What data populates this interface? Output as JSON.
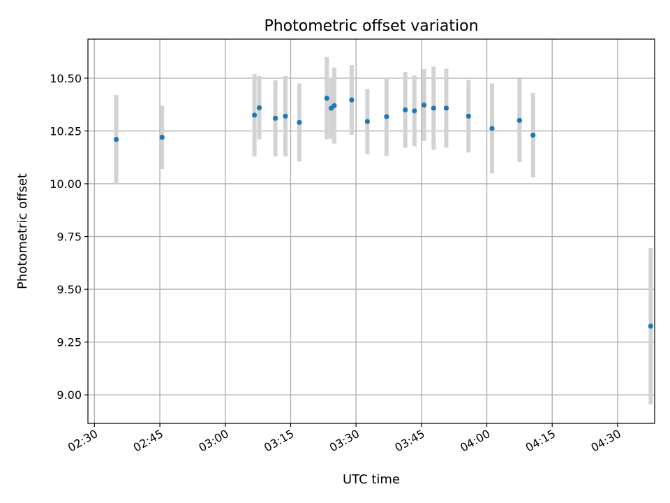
{
  "chart_data": {
    "type": "scatter",
    "title": "Photometric offset variation",
    "xlabel": "UTC time",
    "ylabel": "Photometric offset",
    "grid": true,
    "xlim_minutes": [
      148.5,
      278.5
    ],
    "ylim": [
      8.865,
      10.685
    ],
    "x_ticks": [
      {
        "label": "02:30",
        "minutes": 150
      },
      {
        "label": "02:45",
        "minutes": 165
      },
      {
        "label": "03:00",
        "minutes": 180
      },
      {
        "label": "03:15",
        "minutes": 195
      },
      {
        "label": "03:30",
        "minutes": 210
      },
      {
        "label": "03:45",
        "minutes": 225
      },
      {
        "label": "04:00",
        "minutes": 240
      },
      {
        "label": "04:15",
        "minutes": 255
      },
      {
        "label": "04:30",
        "minutes": 270
      }
    ],
    "y_ticks": [
      {
        "label": "9.00",
        "value": 9.0
      },
      {
        "label": "9.25",
        "value": 9.25
      },
      {
        "label": "9.50",
        "value": 9.5
      },
      {
        "label": "9.75",
        "value": 9.75
      },
      {
        "label": "10.00",
        "value": 10.0
      },
      {
        "label": "10.25",
        "value": 10.25
      },
      {
        "label": "10.50",
        "value": 10.5
      }
    ],
    "colors": {
      "point": "#1f77b4",
      "errorbar": "#d3d3d3"
    },
    "points": [
      {
        "time": "02:35",
        "minutes": 155.0,
        "y": 10.21,
        "err": 0.21
      },
      {
        "time": "02:45.5",
        "minutes": 165.5,
        "y": 10.22,
        "err": 0.15
      },
      {
        "time": "03:06.7",
        "minutes": 186.7,
        "y": 10.325,
        "err": 0.195
      },
      {
        "time": "03:07.8",
        "minutes": 187.8,
        "y": 10.36,
        "err": 0.15
      },
      {
        "time": "03:11.5",
        "minutes": 191.5,
        "y": 10.31,
        "err": 0.18
      },
      {
        "time": "03:13.8",
        "minutes": 193.8,
        "y": 10.32,
        "err": 0.19
      },
      {
        "time": "03:17",
        "minutes": 197.0,
        "y": 10.29,
        "err": 0.185
      },
      {
        "time": "03:23.3",
        "minutes": 203.3,
        "y": 10.405,
        "err": 0.195
      },
      {
        "time": "03:24.3",
        "minutes": 204.3,
        "y": 10.358,
        "err": 0.145
      },
      {
        "time": "03:25",
        "minutes": 205.0,
        "y": 10.37,
        "err": 0.18
      },
      {
        "time": "03:29",
        "minutes": 209.0,
        "y": 10.397,
        "err": 0.165
      },
      {
        "time": "03:32.6",
        "minutes": 212.6,
        "y": 10.295,
        "err": 0.155
      },
      {
        "time": "03:37",
        "minutes": 217.0,
        "y": 10.318,
        "err": 0.185
      },
      {
        "time": "03:41.3",
        "minutes": 221.3,
        "y": 10.35,
        "err": 0.18
      },
      {
        "time": "03:43.4",
        "minutes": 223.4,
        "y": 10.345,
        "err": 0.168
      },
      {
        "time": "03:45.6",
        "minutes": 225.6,
        "y": 10.373,
        "err": 0.17
      },
      {
        "time": "03:47.8",
        "minutes": 227.8,
        "y": 10.358,
        "err": 0.197
      },
      {
        "time": "03:50.7",
        "minutes": 230.7,
        "y": 10.358,
        "err": 0.187
      },
      {
        "time": "03:55.8",
        "minutes": 235.8,
        "y": 10.32,
        "err": 0.172
      },
      {
        "time": "04:01.2",
        "minutes": 241.2,
        "y": 10.262,
        "err": 0.213
      },
      {
        "time": "04:07.5",
        "minutes": 247.5,
        "y": 10.3,
        "err": 0.198
      },
      {
        "time": "04:10.6",
        "minutes": 250.6,
        "y": 10.23,
        "err": 0.2
      },
      {
        "time": "04:37.6",
        "minutes": 277.6,
        "y": 9.325,
        "err": 0.37
      }
    ]
  }
}
